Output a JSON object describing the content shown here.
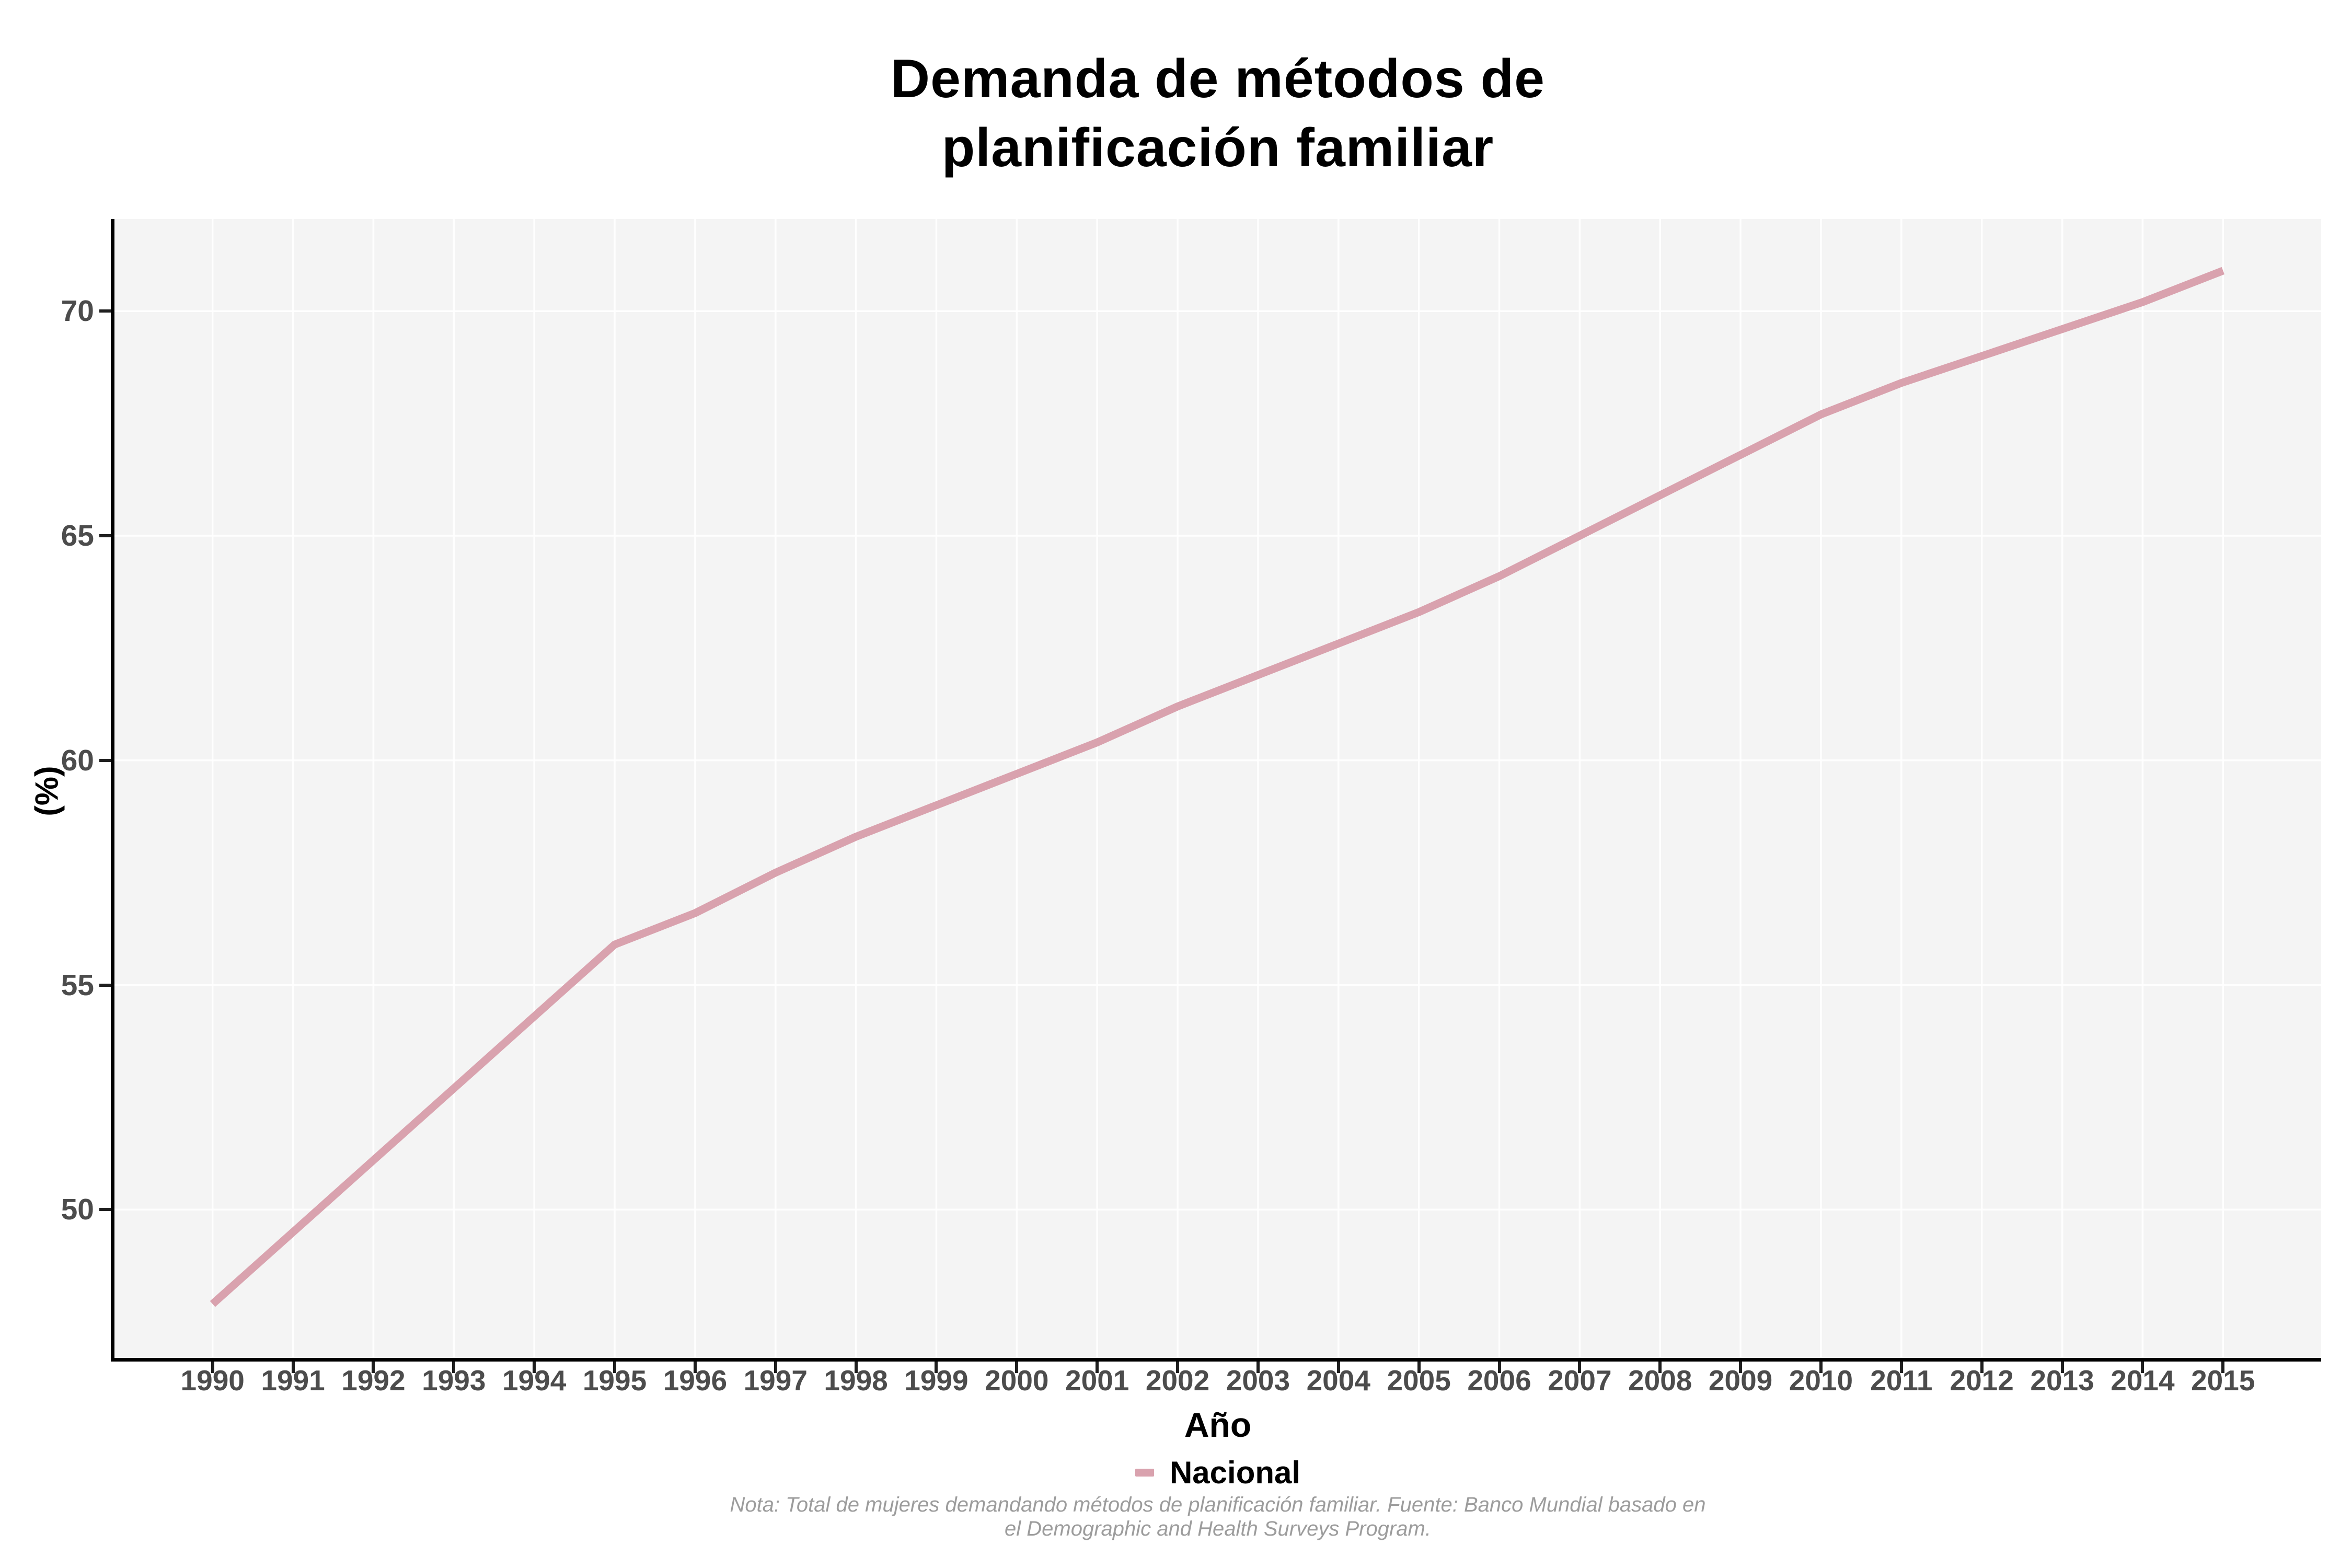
{
  "title": {
    "line1": "Demanda de métodos de",
    "line2": "planificación familiar"
  },
  "axes": {
    "y_title": "(%)",
    "x_title": "Año",
    "y_ticks": [
      50,
      55,
      60,
      65,
      70
    ],
    "x_ticks": [
      1990,
      1991,
      1992,
      1993,
      1994,
      1995,
      1996,
      1997,
      1998,
      1999,
      2000,
      2001,
      2002,
      2003,
      2004,
      2005,
      2006,
      2007,
      2008,
      2009,
      2010,
      2011,
      2012,
      2013,
      2014,
      2015
    ]
  },
  "legend": {
    "label": "Nacional"
  },
  "note": {
    "line1": "Nota: Total de mujeres demandando métodos de planificación familiar. Fuente: Banco Mundial basado en",
    "line2": "el Demographic and Health Surveys Program."
  },
  "colors": {
    "line": "#d9a2ae",
    "panel_bg": "#f4f4f4",
    "gridline": "#ffffff",
    "axis_line": "#000000",
    "tick_text": "#4c4c4c",
    "title_text": "#000000",
    "note_text": "#9c9c9c"
  },
  "chart_data": {
    "type": "line",
    "title": "Demanda de métodos de planificación familiar",
    "xlabel": "Año",
    "ylabel": "(%)",
    "x": [
      1990,
      1991,
      1992,
      1993,
      1994,
      1995,
      1996,
      1997,
      1998,
      1999,
      2000,
      2001,
      2002,
      2003,
      2004,
      2005,
      2006,
      2007,
      2008,
      2009,
      2010,
      2011,
      2012,
      2013,
      2014,
      2015
    ],
    "series": [
      {
        "name": "Nacional",
        "values": [
          47.9,
          49.5,
          51.1,
          52.7,
          54.3,
          55.9,
          56.6,
          57.5,
          58.3,
          59.0,
          59.7,
          60.4,
          61.2,
          61.9,
          62.6,
          63.3,
          64.1,
          65.0,
          65.9,
          66.8,
          67.7,
          68.4,
          69.0,
          69.6,
          70.2,
          70.9
        ]
      }
    ],
    "xlim": [
      1988.78,
      2016.22
    ],
    "ylim": [
      46.7,
      72.05
    ],
    "grid": true,
    "legend_position": "bottom"
  }
}
